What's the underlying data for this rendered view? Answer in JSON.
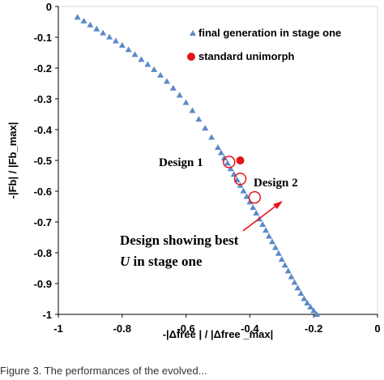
{
  "chart_data": {
    "type": "scatter",
    "xlabel": "-|Δfree | / |Δfree _max|",
    "ylabel": "-|Fb| / |Fb_max|",
    "xlim": [
      -1,
      0
    ],
    "ylim": [
      -1,
      0
    ],
    "x_ticks": [
      "-1",
      "-0.8",
      "-0.6",
      "-0.4",
      "-0.2",
      "0"
    ],
    "y_ticks": [
      "0",
      "-0.1",
      "-0.2",
      "-0.3",
      "-0.4",
      "-0.5",
      "-0.6",
      "-0.7",
      "-0.8",
      "-0.9",
      "-1"
    ],
    "grid": false,
    "legend_position": "top-right",
    "series": [
      {
        "name": "final generation in stage one",
        "marker": "triangle",
        "color": "#5b8ac8",
        "x": [
          -0.94,
          -0.92,
          -0.9,
          -0.88,
          -0.86,
          -0.84,
          -0.82,
          -0.8,
          -0.78,
          -0.76,
          -0.74,
          -0.72,
          -0.7,
          -0.68,
          -0.66,
          -0.64,
          -0.62,
          -0.6,
          -0.58,
          -0.56,
          -0.54,
          -0.52,
          -0.5,
          -0.49,
          -0.48,
          -0.47,
          -0.46,
          -0.45,
          -0.44,
          -0.43,
          -0.42,
          -0.41,
          -0.4,
          -0.39,
          -0.38,
          -0.37,
          -0.36,
          -0.35,
          -0.34,
          -0.33,
          -0.32,
          -0.31,
          -0.3,
          -0.29,
          -0.28,
          -0.27,
          -0.26,
          -0.25,
          -0.24,
          -0.23,
          -0.22,
          -0.21,
          -0.2,
          -0.19
        ],
        "y": [
          -0.035,
          -0.047,
          -0.06,
          -0.073,
          -0.086,
          -0.099,
          -0.112,
          -0.126,
          -0.14,
          -0.156,
          -0.172,
          -0.188,
          -0.205,
          -0.223,
          -0.243,
          -0.265,
          -0.288,
          -0.312,
          -0.338,
          -0.366,
          -0.395,
          -0.425,
          -0.458,
          -0.475,
          -0.492,
          -0.509,
          -0.527,
          -0.545,
          -0.563,
          -0.581,
          -0.599,
          -0.617,
          -0.635,
          -0.653,
          -0.671,
          -0.69,
          -0.708,
          -0.727,
          -0.746,
          -0.764,
          -0.783,
          -0.802,
          -0.821,
          -0.84,
          -0.859,
          -0.878,
          -0.896,
          -0.914,
          -0.932,
          -0.949,
          -0.963,
          -0.976,
          -0.988,
          -1.0
        ]
      },
      {
        "name": "standard unimorph",
        "marker": "circle",
        "color": "#e8131b",
        "x": [
          -0.43
        ],
        "y": [
          -0.5
        ]
      }
    ],
    "highlighted": [
      {
        "x": -0.465,
        "y": -0.505
      },
      {
        "x": -0.43,
        "y": -0.56
      },
      {
        "x": -0.385,
        "y": -0.62
      }
    ],
    "annotations": [
      {
        "text": "Design 1"
      },
      {
        "text": "Design 2"
      },
      {
        "line1": "Design showing best",
        "line2": "U in stage one"
      }
    ],
    "caption": "Figure 3. The performances of the evolved..."
  }
}
